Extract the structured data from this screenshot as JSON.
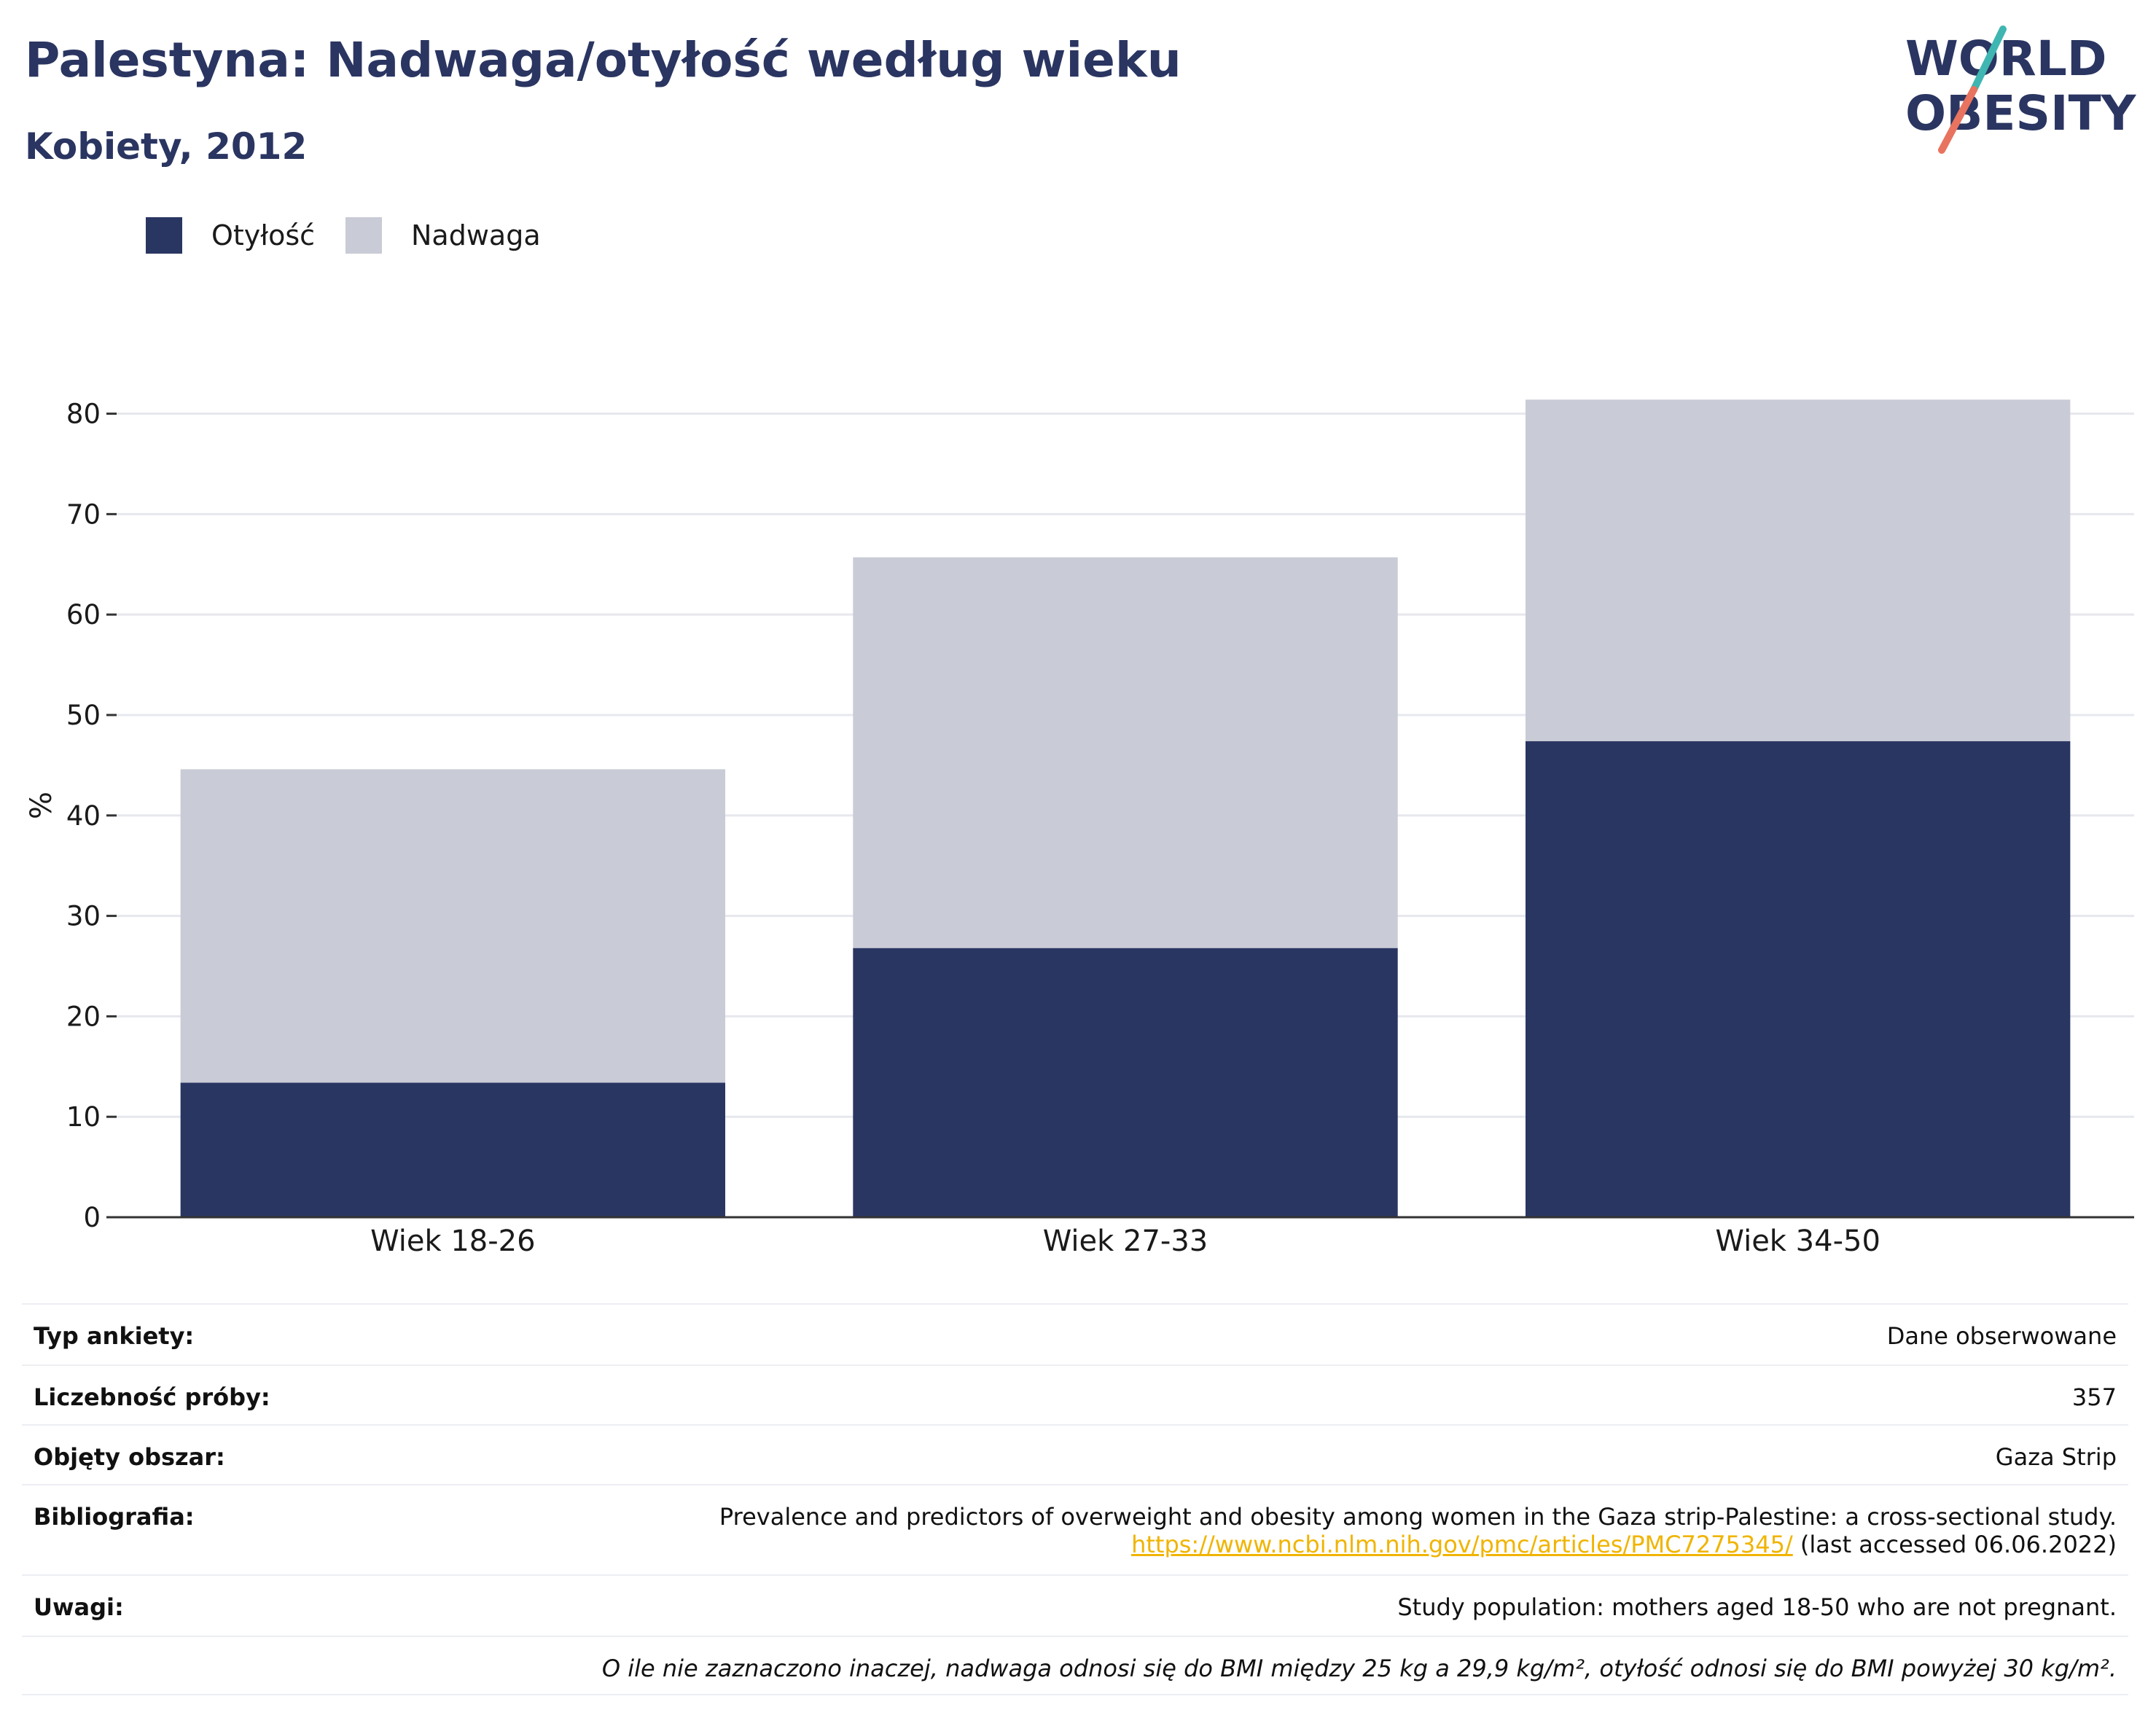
{
  "header": {
    "title": "Palestyna: Nadwaga/otyłość według wieku",
    "subtitle": "Kobiety, 2012"
  },
  "logo": {
    "line1": "WORLD",
    "line2": "OBESITY",
    "text_color": "#2a3561",
    "accent_teal": "#3fb6b1",
    "accent_coral": "#e8735f"
  },
  "colors": {
    "obesity": "#2a3662",
    "overweight": "#c9cbd6",
    "grid": "#e6e8ee",
    "axis": "#333333"
  },
  "chart_data": {
    "type": "bar",
    "stacked": true,
    "categories": [
      "Wiek 18-26",
      "Wiek 27-33",
      "Wiek 34-50"
    ],
    "series": [
      {
        "name": "Otyłość",
        "values": [
          13.4,
          26.8,
          47.4
        ]
      },
      {
        "name": "Nadwaga",
        "values": [
          31.2,
          38.9,
          34.0
        ]
      }
    ],
    "ylabel": "%",
    "ylim": [
      0,
      82
    ],
    "yticks": [
      0,
      10,
      20,
      30,
      40,
      50,
      60,
      70,
      80
    ],
    "grid": true,
    "legend": "top-left"
  },
  "info": {
    "rows": [
      {
        "label": "Typ ankiety:",
        "value": "Dane obserwowane"
      },
      {
        "label": "Liczebność próby:",
        "value": "357"
      },
      {
        "label": "Objęty obszar:",
        "value": "Gaza Strip"
      },
      {
        "label": "Bibliografia:",
        "value": "Prevalence and predictors of overweight and obesity among women in the Gaza strip-Palestine: a cross-sectional study.",
        "link": "https://www.ncbi.nlm.nih.gov/pmc/articles/PMC7275345/",
        "link_suffix": " (last accessed 06.06.2022)"
      },
      {
        "label": "Uwagi:",
        "value": "Study population: mothers aged 18-50 who are not pregnant."
      }
    ],
    "footnote": "O ile nie zaznaczono inaczej, nadwaga odnosi się do BMI między 25 kg a 29,9 kg/m², otyłość odnosi się do BMI powyżej 30 kg/m²."
  }
}
